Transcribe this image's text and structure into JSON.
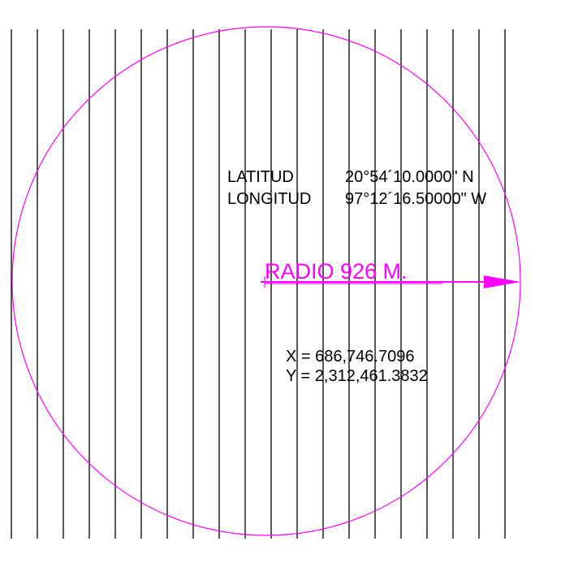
{
  "colors": {
    "background": "#ffffff",
    "lines": "#000000",
    "circle": "#ff00ff"
  },
  "grid": {
    "line_count": 20
  },
  "coordinates": {
    "latitud_label": "LATITUD",
    "latitud_value": "20°54´10.0000\"  N",
    "longitud_label": "LONGITUD",
    "longitud_value": "97°12´16.50000\" W"
  },
  "radius": {
    "label": "RADIO 926 M."
  },
  "projection": {
    "x_line": "X = 686,746.7096",
    "y_line": "Y = 2,312,461.3832"
  }
}
